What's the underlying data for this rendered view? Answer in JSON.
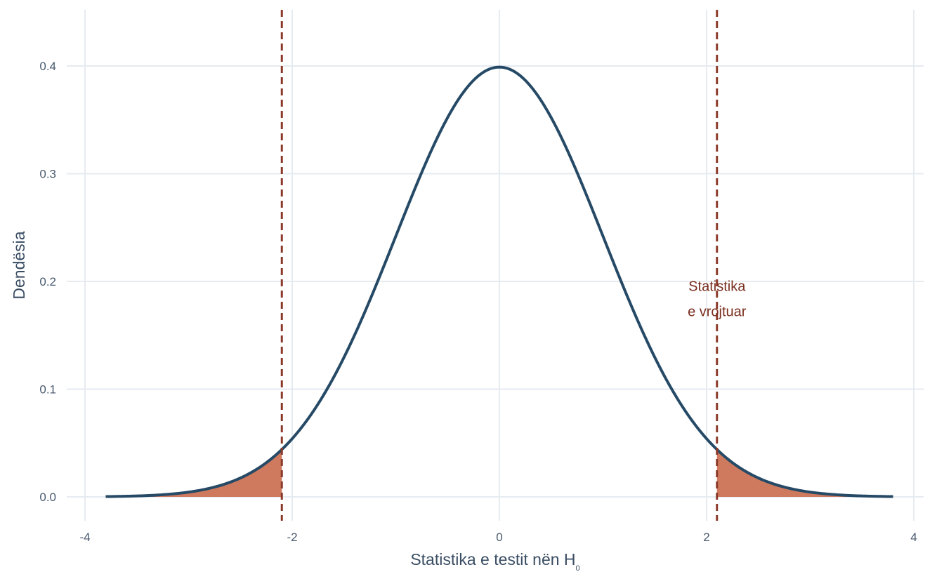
{
  "chart_data": {
    "type": "area",
    "distribution": "standard normal density",
    "x_range": [
      -3.8,
      3.8
    ],
    "xlim": [
      -4,
      4
    ],
    "ylim": [
      0,
      0.4
    ],
    "x_ticks": [
      "-4",
      "-2",
      "0",
      "2",
      "4"
    ],
    "y_ticks": [
      "0.0",
      "0.1",
      "0.2",
      "0.3",
      "0.4"
    ],
    "xlabel": "Statistika e testit nën H",
    "xlabel_subscript": "0",
    "ylabel": "Dendësia",
    "critical_values": [
      -2.1,
      2.1
    ],
    "curve_points": [
      {
        "x": -3.8,
        "y": 0.0003
      },
      {
        "x": -3.0,
        "y": 0.0044
      },
      {
        "x": -2.5,
        "y": 0.0175
      },
      {
        "x": -2.1,
        "y": 0.044
      },
      {
        "x": -1.5,
        "y": 0.1295
      },
      {
        "x": -1.0,
        "y": 0.242
      },
      {
        "x": -0.5,
        "y": 0.3521
      },
      {
        "x": 0.0,
        "y": 0.3989
      },
      {
        "x": 0.5,
        "y": 0.3521
      },
      {
        "x": 1.0,
        "y": 0.242
      },
      {
        "x": 1.5,
        "y": 0.1295
      },
      {
        "x": 2.1,
        "y": 0.044
      },
      {
        "x": 2.5,
        "y": 0.0175
      },
      {
        "x": 3.0,
        "y": 0.0044
      },
      {
        "x": 3.8,
        "y": 0.0003
      }
    ],
    "shaded_regions": [
      {
        "from": -3.8,
        "to": -2.1
      },
      {
        "from": 2.1,
        "to": 3.8
      }
    ],
    "annotation": {
      "lines": [
        "Statistika",
        "e vrojtuar"
      ],
      "x": 2.1,
      "y": 0.195
    },
    "grid": true,
    "colors": {
      "curve": "#264a66",
      "fill": "#cf7a5e",
      "critical_line": "#8b3a2a",
      "annotation": "#7a2e1e",
      "grid": "#e6ebf0"
    }
  }
}
